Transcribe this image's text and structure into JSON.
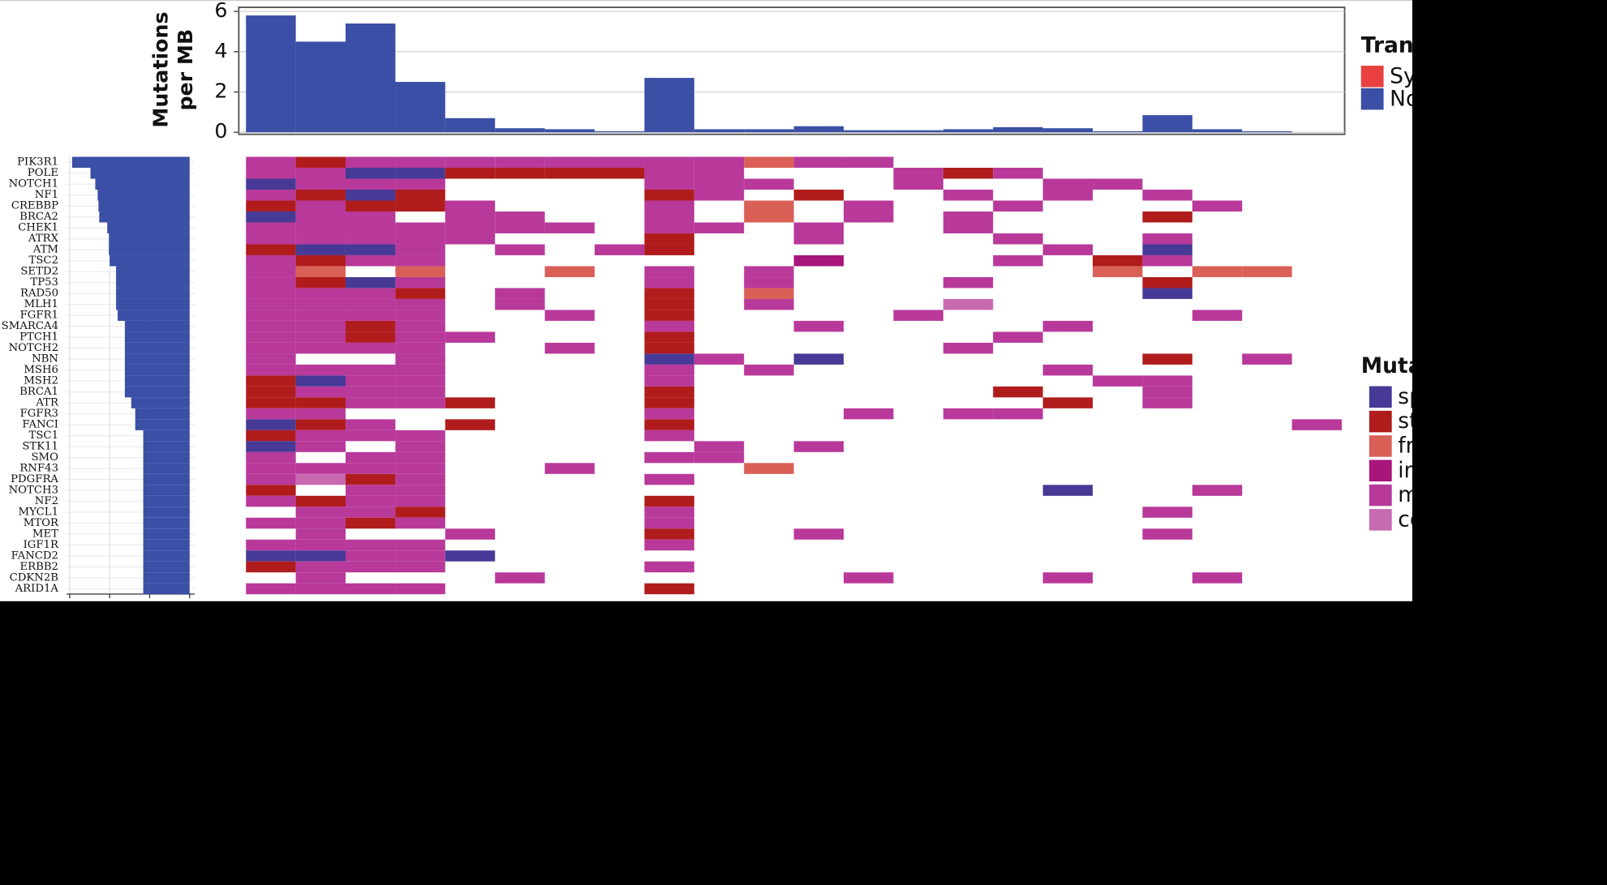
{
  "chart_data": [
    {
      "type": "bar",
      "axis_label": [
        "Mutations",
        "per MB"
      ],
      "values": [
        5.8,
        4.5,
        5.4,
        2.5,
        0.7,
        0.2,
        0.15,
        0.05,
        2.7,
        0.15,
        0.15,
        0.3,
        0.1,
        0.1,
        0.15,
        0.25,
        0.2,
        0.05,
        0.85,
        0.15,
        0.05,
        0
      ],
      "color": "#3a4fa5",
      "ylim": [
        0,
        6
      ],
      "yticks": [
        0,
        2,
        4,
        6
      ],
      "grid": true,
      "legend": {
        "title": "Trans",
        "items": [
          {
            "name": "Sy",
            "color": "#e8413f"
          },
          {
            "name": "No",
            "color": "#3a4fa5"
          }
        ]
      }
    },
    {
      "type": "barh",
      "categories": [
        "PIK3R1",
        "POLE",
        "NOTCH1",
        "NF1",
        "CREBBP",
        "BRCA2",
        "CHEK1",
        "ATRX",
        "ATM",
        "TSC2",
        "SETD2",
        "TP53",
        "RAD50",
        "MLH1",
        "FGFR1",
        "SMARCA4",
        "PTCH1",
        "NOTCH2",
        "NBN",
        "MSH6",
        "MSH2",
        "BRCA1",
        "ATR",
        "FGFR3",
        "FANCI",
        "TSC1",
        "STK11",
        "SMO",
        "RNF43",
        "PDGFRA",
        "NOTCH3",
        "NF2",
        "MYCL1",
        "MTOR",
        "MET",
        "IGF1R",
        "FANCD2",
        "ERBB2",
        "CDKN2B",
        "ARID1A"
      ],
      "values": [
        14.7,
        12.4,
        11.8,
        11.5,
        11.4,
        11.3,
        10.3,
        10.1,
        10.1,
        10,
        9.2,
        9.2,
        9.2,
        9.2,
        9,
        8.1,
        8.1,
        8.1,
        8.1,
        8.1,
        8.1,
        8.1,
        7.3,
        6.8,
        6.8,
        5.8,
        5.8,
        5.8,
        5.8,
        5.8,
        5.8,
        5.8,
        5.8,
        5.8,
        5.8,
        5.8,
        5.8,
        5.8,
        5.8,
        5.8
      ],
      "color": "#3a4fa5",
      "xlim": [
        0,
        15
      ],
      "xticks": [
        0,
        5,
        10,
        15
      ]
    },
    {
      "type": "heatmap",
      "values": [
        [
          4,
          1,
          4,
          4,
          4,
          4,
          4,
          4,
          4,
          4,
          2,
          4,
          4,
          null,
          null,
          null,
          null,
          null,
          null,
          null,
          null,
          null
        ],
        [
          4,
          4,
          0,
          0,
          1,
          1,
          1,
          1,
          4,
          4,
          null,
          null,
          null,
          4,
          1,
          4,
          null,
          null,
          null,
          null,
          null,
          null
        ],
        [
          0,
          4,
          4,
          4,
          null,
          null,
          null,
          null,
          4,
          4,
          4,
          null,
          null,
          4,
          null,
          null,
          4,
          4,
          null,
          null,
          null,
          null
        ],
        [
          4,
          1,
          0,
          1,
          null,
          null,
          null,
          null,
          1,
          4,
          null,
          1,
          null,
          null,
          4,
          null,
          4,
          null,
          4,
          null,
          null,
          null
        ],
        [
          1,
          4,
          1,
          1,
          4,
          null,
          null,
          null,
          4,
          null,
          2,
          null,
          4,
          null,
          null,
          4,
          null,
          null,
          null,
          4,
          null,
          null
        ],
        [
          0,
          4,
          4,
          null,
          4,
          4,
          null,
          null,
          4,
          null,
          2,
          null,
          4,
          null,
          4,
          null,
          null,
          null,
          1,
          null,
          null,
          null
        ],
        [
          4,
          4,
          4,
          4,
          4,
          4,
          4,
          null,
          4,
          4,
          null,
          4,
          null,
          null,
          4,
          null,
          null,
          null,
          null,
          null,
          null,
          null
        ],
        [
          4,
          4,
          4,
          4,
          4,
          null,
          null,
          null,
          1,
          null,
          null,
          4,
          null,
          null,
          null,
          4,
          null,
          null,
          4,
          null,
          null,
          null
        ],
        [
          1,
          0,
          0,
          4,
          null,
          4,
          null,
          4,
          1,
          null,
          null,
          null,
          null,
          null,
          null,
          null,
          4,
          null,
          0,
          null,
          null,
          null
        ],
        [
          4,
          1,
          4,
          4,
          null,
          null,
          null,
          null,
          null,
          null,
          null,
          3,
          null,
          null,
          null,
          4,
          null,
          1,
          4,
          null,
          null,
          null
        ],
        [
          4,
          2,
          null,
          2,
          null,
          null,
          2,
          null,
          4,
          null,
          4,
          null,
          null,
          null,
          null,
          null,
          null,
          2,
          null,
          2,
          2,
          null
        ],
        [
          4,
          1,
          0,
          4,
          null,
          null,
          null,
          null,
          4,
          null,
          4,
          null,
          null,
          null,
          4,
          null,
          null,
          null,
          1,
          null,
          null,
          null
        ],
        [
          4,
          4,
          4,
          1,
          null,
          4,
          null,
          null,
          1,
          null,
          2,
          null,
          null,
          null,
          null,
          null,
          null,
          null,
          0,
          null,
          null,
          null
        ],
        [
          4,
          4,
          4,
          4,
          null,
          4,
          null,
          null,
          1,
          null,
          4,
          null,
          null,
          null,
          5,
          null,
          null,
          null,
          null,
          null,
          null,
          null
        ],
        [
          4,
          4,
          4,
          4,
          null,
          null,
          4,
          null,
          1,
          null,
          null,
          null,
          null,
          4,
          null,
          null,
          null,
          null,
          null,
          4,
          null,
          null
        ],
        [
          4,
          4,
          1,
          4,
          null,
          null,
          null,
          null,
          4,
          null,
          null,
          4,
          null,
          null,
          null,
          null,
          4,
          null,
          null,
          null,
          null,
          null
        ],
        [
          4,
          4,
          1,
          4,
          4,
          null,
          null,
          null,
          1,
          null,
          null,
          null,
          null,
          null,
          null,
          4,
          null,
          null,
          null,
          null,
          null,
          null
        ],
        [
          4,
          4,
          4,
          4,
          null,
          null,
          4,
          null,
          1,
          null,
          null,
          null,
          null,
          null,
          4,
          null,
          null,
          null,
          null,
          null,
          null,
          null
        ],
        [
          4,
          null,
          null,
          4,
          null,
          null,
          null,
          null,
          0,
          4,
          null,
          0,
          null,
          null,
          null,
          null,
          null,
          null,
          1,
          null,
          4,
          null
        ],
        [
          4,
          4,
          4,
          4,
          null,
          null,
          null,
          null,
          4,
          null,
          4,
          null,
          null,
          null,
          null,
          null,
          4,
          null,
          null,
          null,
          null,
          null
        ],
        [
          1,
          0,
          4,
          4,
          null,
          null,
          null,
          null,
          4,
          null,
          null,
          null,
          null,
          null,
          null,
          null,
          null,
          4,
          4,
          null,
          null,
          null
        ],
        [
          1,
          4,
          4,
          4,
          null,
          null,
          null,
          null,
          1,
          null,
          null,
          null,
          null,
          null,
          null,
          1,
          null,
          null,
          4,
          null,
          null,
          null
        ],
        [
          1,
          1,
          4,
          4,
          1,
          null,
          null,
          null,
          1,
          null,
          null,
          null,
          null,
          null,
          null,
          null,
          1,
          null,
          4,
          null,
          null,
          null
        ],
        [
          4,
          4,
          null,
          null,
          null,
          null,
          null,
          null,
          4,
          null,
          null,
          null,
          4,
          null,
          4,
          4,
          null,
          null,
          null,
          null,
          null,
          null
        ],
        [
          0,
          1,
          4,
          null,
          1,
          null,
          null,
          null,
          1,
          null,
          null,
          null,
          null,
          null,
          null,
          null,
          null,
          null,
          null,
          null,
          null,
          4
        ],
        [
          1,
          4,
          4,
          4,
          null,
          null,
          null,
          null,
          4,
          null,
          null,
          null,
          null,
          null,
          null,
          null,
          null,
          null,
          null,
          null,
          null,
          null
        ],
        [
          0,
          4,
          null,
          4,
          null,
          null,
          null,
          null,
          null,
          4,
          null,
          4,
          null,
          null,
          null,
          null,
          null,
          null,
          null,
          null,
          null,
          null
        ],
        [
          4,
          null,
          4,
          4,
          null,
          null,
          null,
          null,
          4,
          4,
          null,
          null,
          null,
          null,
          null,
          null,
          null,
          null,
          null,
          null,
          null,
          null
        ],
        [
          4,
          4,
          4,
          4,
          null,
          null,
          4,
          null,
          null,
          null,
          2,
          null,
          null,
          null,
          null,
          null,
          null,
          null,
          null,
          null,
          null,
          null
        ],
        [
          4,
          5,
          1,
          4,
          null,
          null,
          null,
          null,
          4,
          null,
          null,
          null,
          null,
          null,
          null,
          null,
          null,
          null,
          null,
          null,
          null,
          null
        ],
        [
          1,
          null,
          4,
          4,
          null,
          null,
          null,
          null,
          null,
          null,
          null,
          null,
          null,
          null,
          null,
          null,
          0,
          null,
          null,
          4,
          null,
          null
        ],
        [
          4,
          1,
          4,
          4,
          null,
          null,
          null,
          null,
          1,
          null,
          null,
          null,
          null,
          null,
          null,
          null,
          null,
          null,
          null,
          null,
          null,
          null
        ],
        [
          null,
          4,
          4,
          1,
          null,
          null,
          null,
          null,
          4,
          null,
          null,
          null,
          null,
          null,
          null,
          null,
          null,
          null,
          4,
          null,
          null,
          null
        ],
        [
          4,
          4,
          1,
          4,
          null,
          null,
          null,
          null,
          4,
          null,
          null,
          null,
          null,
          null,
          null,
          null,
          null,
          null,
          null,
          null,
          null,
          null
        ],
        [
          null,
          4,
          null,
          null,
          4,
          null,
          null,
          null,
          1,
          null,
          null,
          4,
          null,
          null,
          null,
          null,
          null,
          null,
          4,
          null,
          null,
          null
        ],
        [
          4,
          4,
          4,
          4,
          null,
          null,
          null,
          null,
          4,
          null,
          null,
          null,
          null,
          null,
          null,
          null,
          null,
          null,
          null,
          null,
          null,
          null
        ],
        [
          0,
          0,
          4,
          4,
          0,
          null,
          null,
          null,
          null,
          null,
          null,
          null,
          null,
          null,
          null,
          null,
          null,
          null,
          null,
          null,
          null,
          null
        ],
        [
          1,
          4,
          4,
          4,
          null,
          null,
          null,
          null,
          4,
          null,
          null,
          null,
          null,
          null,
          null,
          null,
          null,
          null,
          null,
          null,
          null,
          null
        ],
        [
          null,
          4,
          null,
          null,
          null,
          4,
          null,
          null,
          null,
          null,
          null,
          null,
          4,
          null,
          null,
          null,
          4,
          null,
          null,
          4,
          null,
          null
        ],
        [
          4,
          4,
          4,
          4,
          null,
          null,
          null,
          null,
          1,
          null,
          null,
          null,
          null,
          null,
          null,
          null,
          null,
          null,
          null,
          null,
          null,
          null
        ]
      ],
      "legend": {
        "title": "Muta",
        "items": [
          {
            "name": "sp",
            "color": "#463a96"
          },
          {
            "name": "st",
            "color": "#b01c1c"
          },
          {
            "name": "fr",
            "color": "#d95f57"
          },
          {
            "name": "in",
            "color": "#a8157b"
          },
          {
            "name": "m",
            "color": "#b8399a"
          },
          {
            "name": "co",
            "color": "#c76ab0"
          }
        ]
      }
    }
  ]
}
